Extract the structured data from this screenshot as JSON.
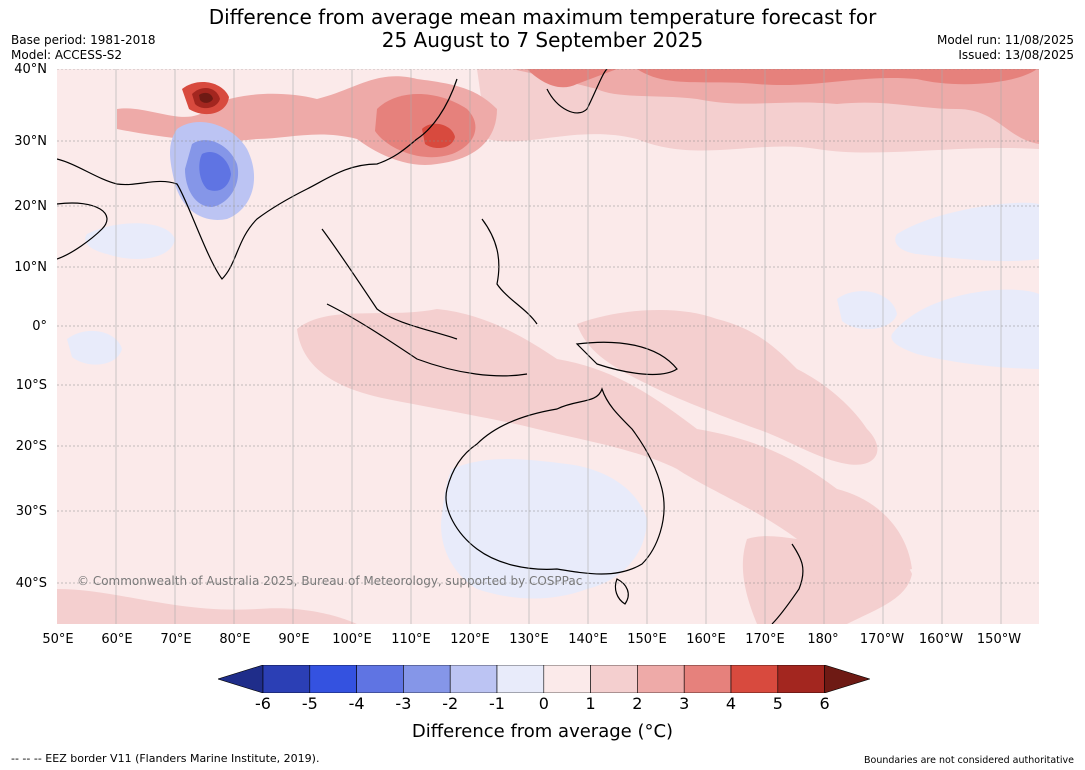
{
  "header": {
    "title_line1": "Difference from average mean maximum temperature forecast for",
    "title_line2": "25 August to 7 September 2025",
    "base_period": "Base period: 1981-2018",
    "model": "Model: ACCESS-S2",
    "model_run": "Model run: 11/08/2025",
    "issued": "Issued: 13/08/2025"
  },
  "map": {
    "lat_labels": [
      "40°N",
      "30°N",
      "20°N",
      "10°N",
      "0°",
      "10°S",
      "20°S",
      "30°S",
      "40°S"
    ],
    "lon_labels": [
      "50°E",
      "60°E",
      "70°E",
      "80°E",
      "90°E",
      "100°E",
      "110°E",
      "120°E",
      "130°E",
      "140°E",
      "150°E",
      "160°E",
      "170°E",
      "180°",
      "170°W",
      "160°W",
      "150°W"
    ],
    "copyright": "© Commonwealth of Australia 2025, Bureau of Meteorology, supported by COSPPac"
  },
  "colorbar": {
    "ticks": [
      "-6",
      "-5",
      "-4",
      "-3",
      "-2",
      "-1",
      "0",
      "1",
      "2",
      "3",
      "4",
      "5",
      "6"
    ],
    "colors": [
      "#1f2d8a",
      "#2b3fb5",
      "#3452e0",
      "#5f74e3",
      "#8596e8",
      "#bcc4f3",
      "#e8ebfa",
      "#fbeaea",
      "#f4cfcf",
      "#eeaaa8",
      "#e6817c",
      "#d84a3e",
      "#a3261f",
      "#6e1a14"
    ],
    "title": "Difference from average (°C)"
  },
  "footer": {
    "eez_note": "--  --  -- EEZ border V11 (Flanders Marine Institute, 2019).",
    "boundaries_note": "Boundaries are not considered authoritative"
  }
}
